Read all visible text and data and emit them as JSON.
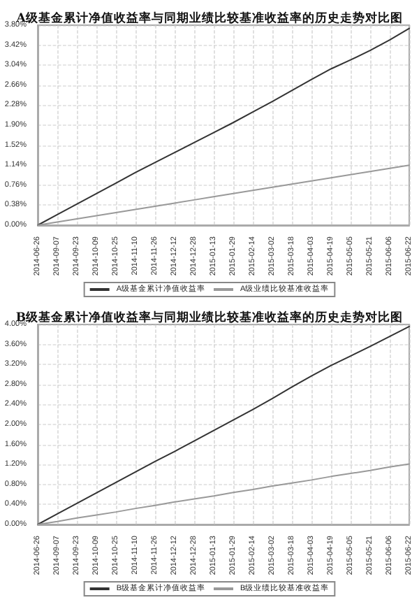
{
  "chart_data": [
    {
      "type": "line",
      "title": "A级基金累计净值收益率与同期业绩比较基准收益率的历史走势对比图",
      "categories": [
        "2014-06-26",
        "2014-09-07",
        "2014-09-23",
        "2014-10-09",
        "2014-10-25",
        "2014-11-10",
        "2014-11-26",
        "2014-12-12",
        "2014-12-28",
        "2015-01-13",
        "2015-01-29",
        "2015-02-14",
        "2015-03-02",
        "2015-03-18",
        "2015-04-03",
        "2015-04-19",
        "2015-05-05",
        "2015-05-21",
        "2015-06-06",
        "2015-06-22"
      ],
      "series": [
        {
          "name": "A级基金累计净值收益率",
          "color": "#333333",
          "values": [
            0,
            0.2,
            0.4,
            0.6,
            0.8,
            1.0,
            1.19,
            1.38,
            1.57,
            1.76,
            1.95,
            2.15,
            2.35,
            2.56,
            2.77,
            2.97,
            3.14,
            3.32,
            3.52,
            3.74
          ]
        },
        {
          "name": "A级业绩比较基准收益率",
          "color": "#999999",
          "values": [
            0,
            0.06,
            0.12,
            0.18,
            0.24,
            0.3,
            0.36,
            0.42,
            0.48,
            0.54,
            0.6,
            0.66,
            0.72,
            0.78,
            0.84,
            0.9,
            0.96,
            1.02,
            1.08,
            1.14
          ]
        }
      ],
      "ylim": [
        0,
        3.8
      ],
      "yticks": [
        {
          "value": 0,
          "label": "0.00%"
        },
        {
          "value": 0.38,
          "label": "0.38%"
        },
        {
          "value": 0.76,
          "label": "0.76%"
        },
        {
          "value": 1.14,
          "label": "1.14%"
        },
        {
          "value": 1.52,
          "label": "1.52%"
        },
        {
          "value": 1.9,
          "label": "1.90%"
        },
        {
          "value": 2.28,
          "label": "2.28%"
        },
        {
          "value": 2.66,
          "label": "2.66%"
        },
        {
          "value": 3.04,
          "label": "3.04%"
        },
        {
          "value": 3.42,
          "label": "3.42%"
        },
        {
          "value": 3.8,
          "label": "3.80%"
        }
      ],
      "grid": true,
      "legend": "bottom",
      "marker": "none",
      "line_style": "solid"
    },
    {
      "type": "line",
      "title": "B级基金累计净值收益率与同期业绩比较基准收益率的历史走势对比图",
      "categories": [
        "2014-06-26",
        "2014-09-07",
        "2014-09-23",
        "2014-10-09",
        "2014-10-25",
        "2014-11-10",
        "2014-11-26",
        "2014-12-12",
        "2014-12-28",
        "2015-01-13",
        "2015-01-29",
        "2015-02-14",
        "2015-03-02",
        "2015-03-18",
        "2015-04-03",
        "2015-04-19",
        "2015-05-05",
        "2015-05-21",
        "2015-06-06",
        "2015-06-22"
      ],
      "series": [
        {
          "name": "B级基金累计净值收益率",
          "color": "#333333",
          "values": [
            0,
            0.21,
            0.42,
            0.63,
            0.84,
            1.05,
            1.26,
            1.46,
            1.67,
            1.88,
            2.09,
            2.3,
            2.52,
            2.75,
            2.97,
            3.18,
            3.37,
            3.56,
            3.76,
            3.96
          ]
        },
        {
          "name": "B级业绩比较基准收益率",
          "color": "#999999",
          "values": [
            0,
            0.06,
            0.13,
            0.19,
            0.25,
            0.32,
            0.38,
            0.45,
            0.51,
            0.57,
            0.64,
            0.7,
            0.77,
            0.83,
            0.89,
            0.96,
            1.02,
            1.08,
            1.15,
            1.21
          ]
        }
      ],
      "ylim": [
        0,
        4
      ],
      "yticks": [
        {
          "value": 0,
          "label": "0.00%"
        },
        {
          "value": 0.4,
          "label": "0.40%"
        },
        {
          "value": 0.8,
          "label": "0.80%"
        },
        {
          "value": 1.2,
          "label": "1.20%"
        },
        {
          "value": 1.6,
          "label": "1.60%"
        },
        {
          "value": 2,
          "label": "2.00%"
        },
        {
          "value": 2.4,
          "label": "2.40%"
        },
        {
          "value": 2.8,
          "label": "2.80%"
        },
        {
          "value": 3.2,
          "label": "3.20%"
        },
        {
          "value": 3.6,
          "label": "3.60%"
        },
        {
          "value": 4,
          "label": "4.00%"
        }
      ],
      "grid": true,
      "legend": "bottom",
      "marker": "none",
      "line_style": "solid"
    }
  ]
}
